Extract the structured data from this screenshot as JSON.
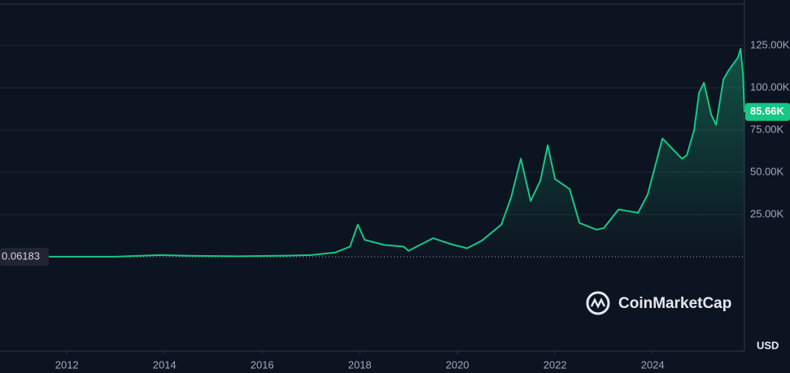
{
  "chart_data": {
    "type": "line",
    "watermark": "CoinMarketCap",
    "currency": "USD",
    "x": [
      2010.7,
      2013.0,
      2013.9,
      2014.5,
      2015.5,
      2016.5,
      2017.0,
      2017.5,
      2017.8,
      2017.96,
      2018.1,
      2018.5,
      2018.9,
      2019.0,
      2019.5,
      2019.9,
      2020.2,
      2020.5,
      2020.9,
      2021.1,
      2021.3,
      2021.5,
      2021.7,
      2021.85,
      2022.0,
      2022.3,
      2022.5,
      2022.85,
      2023.0,
      2023.3,
      2023.7,
      2023.9,
      2024.2,
      2024.6,
      2024.7,
      2024.85,
      2024.95,
      2025.05,
      2025.2,
      2025.3,
      2025.45,
      2025.55,
      2025.75,
      2025.8,
      2025.85,
      2025.88
    ],
    "series": [
      {
        "color": "#16c784",
        "values": [
          0.06,
          13,
          1000,
          600,
          250,
          650,
          1000,
          2500,
          6000,
          19000,
          10000,
          7000,
          6000,
          3500,
          11000,
          7200,
          5000,
          9500,
          19000,
          35000,
          58000,
          33000,
          45000,
          66000,
          46000,
          40000,
          20000,
          16000,
          17000,
          28000,
          26000,
          37000,
          70000,
          58000,
          60000,
          75000,
          97000,
          103000,
          84000,
          78000,
          105000,
          110000,
          118000,
          123000,
          108000,
          85660
        ]
      }
    ],
    "first_price": {
      "value": 0.06183,
      "label": "0.06183"
    },
    "last_price": {
      "value": 85660,
      "label": "85.66K"
    },
    "xlim": [
      2010.63,
      2025.88
    ],
    "xticks": [
      2012,
      2014,
      2016,
      2018,
      2020,
      2022,
      2024
    ],
    "ylim": [
      -55800,
      149500
    ],
    "yticks": [
      {
        "value": 25000,
        "label": "25.00K"
      },
      {
        "value": 50000,
        "label": "50.00K"
      },
      {
        "value": 75000,
        "label": "75.00K"
      },
      {
        "value": 100000,
        "label": "100.00K"
      },
      {
        "value": 125000,
        "label": "125.00K"
      }
    ],
    "grid": true
  }
}
